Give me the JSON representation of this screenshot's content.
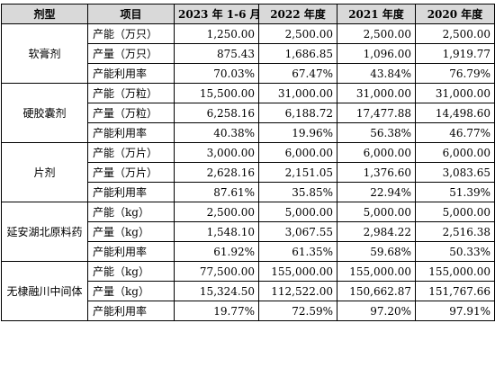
{
  "chart_data": {
    "type": "table",
    "columns": [
      "剂型",
      "项目",
      "2023 年 1-6 月",
      "2022 年度",
      "2021 年度",
      "2020 年度"
    ],
    "groups": [
      {
        "dosage_form": "软膏剂",
        "rows": [
          {
            "item": "产能（万只）",
            "values": [
              "1,250.00",
              "2,500.00",
              "2,500.00",
              "2,500.00"
            ]
          },
          {
            "item": "产量（万只）",
            "values": [
              "875.43",
              "1,686.85",
              "1,096.00",
              "1,919.77"
            ]
          },
          {
            "item": "产能利用率",
            "values": [
              "70.03%",
              "67.47%",
              "43.84%",
              "76.79%"
            ]
          }
        ]
      },
      {
        "dosage_form": "硬胶囊剂",
        "rows": [
          {
            "item": "产能（万粒）",
            "values": [
              "15,500.00",
              "31,000.00",
              "31,000.00",
              "31,000.00"
            ]
          },
          {
            "item": "产量（万粒）",
            "values": [
              "6,258.16",
              "6,188.72",
              "17,477.88",
              "14,498.60"
            ]
          },
          {
            "item": "产能利用率",
            "values": [
              "40.38%",
              "19.96%",
              "56.38%",
              "46.77%"
            ]
          }
        ]
      },
      {
        "dosage_form": "片剂",
        "rows": [
          {
            "item": "产能（万片）",
            "values": [
              "3,000.00",
              "6,000.00",
              "6,000.00",
              "6,000.00"
            ]
          },
          {
            "item": "产量（万片）",
            "values": [
              "2,628.16",
              "2,151.05",
              "1,376.60",
              "3,083.65"
            ]
          },
          {
            "item": "产能利用率",
            "values": [
              "87.61%",
              "35.85%",
              "22.94%",
              "51.39%"
            ]
          }
        ]
      },
      {
        "dosage_form": "延安湖北原料药",
        "rows": [
          {
            "item": "产能（kg）",
            "values": [
              "2,500.00",
              "5,000.00",
              "5,000.00",
              "5,000.00"
            ]
          },
          {
            "item": "产量（kg）",
            "values": [
              "1,548.10",
              "3,067.55",
              "2,984.22",
              "2,516.38"
            ]
          },
          {
            "item": "产能利用率",
            "values": [
              "61.92%",
              "61.35%",
              "59.68%",
              "50.33%"
            ]
          }
        ]
      },
      {
        "dosage_form": "无棣融川中间体",
        "rows": [
          {
            "item": "产能（kg）",
            "values": [
              "77,500.00",
              "155,000.00",
              "155,000.00",
              "155,000.00"
            ]
          },
          {
            "item": "产量（kg）",
            "values": [
              "15,324.50",
              "112,522.00",
              "150,662.87",
              "151,767.66"
            ]
          },
          {
            "item": "产能利用率",
            "values": [
              "19.77%",
              "72.59%",
              "97.20%",
              "97.91%"
            ]
          }
        ]
      }
    ]
  }
}
